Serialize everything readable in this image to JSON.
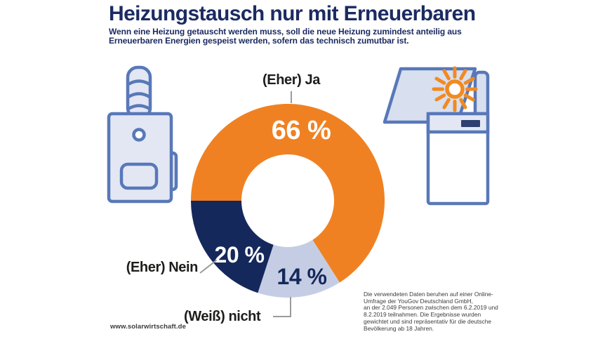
{
  "header": {
    "title": "Heizungstausch nur mit Erneuerbaren",
    "subtitle_line1": "Wenn eine Heizung getauscht werden muss, soll die neue Heizung zumindest anteilig aus",
    "subtitle_line2": "Erneuerbaren Energien gespeist werden, sofern das technisch zumutbar ist."
  },
  "chart_data": {
    "type": "pie",
    "variant": "donut",
    "title": "Heizungstausch nur mit Erneuerbaren",
    "start_angle_deg_clockwise_from_top": 270,
    "outer_radius_px": 138,
    "inner_radius_px": 66,
    "segments": [
      {
        "label": "(Eher) Ja",
        "value": 66,
        "pct_label": "66 %",
        "color": "#F08122",
        "pct_label_color": "#FFFFFF"
      },
      {
        "label": "(Weiß) nicht",
        "value": 14,
        "pct_label": "14 %",
        "color": "#C5CDE4",
        "pct_label_color": "#15285C"
      },
      {
        "label": "(Eher) Nein",
        "value": 20,
        "pct_label": "20 %",
        "color": "#15285C",
        "pct_label_color": "#FFFFFF"
      }
    ]
  },
  "icons": {
    "left": "boiler-icon",
    "right": "solar-panel-sun-heatpump-icon"
  },
  "colors": {
    "title_navy": "#1B2B62",
    "slice_orange": "#F08122",
    "slice_navy": "#15285C",
    "slice_lightblue": "#C5CDE4",
    "icon_stroke_blue": "#5878B8",
    "icon_fill_light": "#E3E7F4",
    "panel_fill": "#D8DFEF",
    "sun_orange": "#F18A21",
    "callout_line_gray": "#9B9B9B",
    "smallprint_gray": "#3C3C3B"
  },
  "footer": {
    "source_url": "www.solarwirtschaft.de",
    "disclaimer": "Die verwendeten Daten beruhen auf einer Online-\nUmfrage der YouGov Deutschland GmbH,\nan der 2.049 Personen zwischen dem 6.2.2019 und\n8.2.2019 teilnahmen. Die Ergebnisse wurden\ngewichtet und sind repräsentativ für die deutsche\nBevölkerung ab 18 Jahren."
  }
}
